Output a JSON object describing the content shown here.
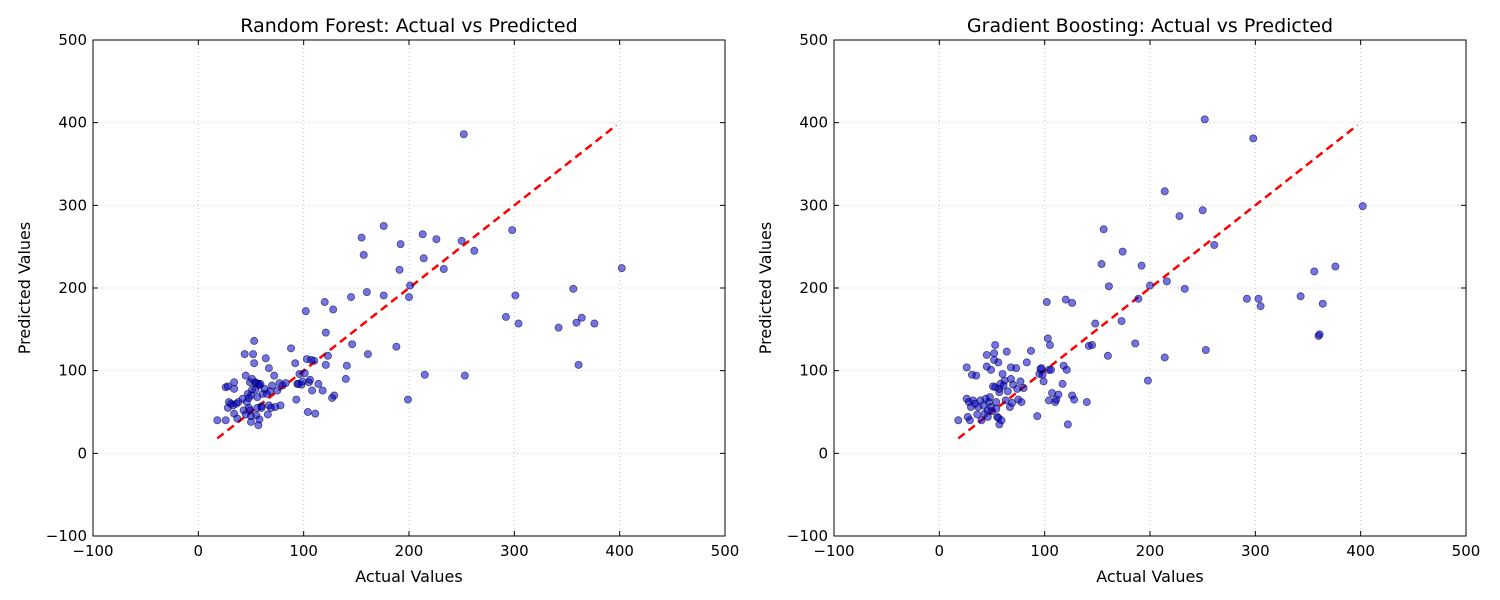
{
  "chart_data": [
    {
      "type": "scatter",
      "title": "Random Forest: Actual vs Predicted",
      "xlabel": "Actual Values",
      "ylabel": "Predicted Values",
      "xlim": [
        -100,
        500
      ],
      "ylim": [
        -100,
        500
      ],
      "xticks": [
        -100,
        0,
        100,
        200,
        300,
        400,
        500
      ],
      "yticks": [
        -100,
        0,
        100,
        200,
        300,
        400,
        500
      ],
      "grid": true,
      "reference_line": {
        "x": [
          18,
          397
        ],
        "y": [
          18,
          397
        ],
        "color": "#ff0000",
        "style": "dashed"
      },
      "point_color": "#0000cc",
      "points": [
        [
          18,
          40
        ],
        [
          26,
          40
        ],
        [
          26,
          80
        ],
        [
          28,
          55
        ],
        [
          28,
          81
        ],
        [
          29,
          62
        ],
        [
          31,
          60
        ],
        [
          33,
          58
        ],
        [
          34,
          78
        ],
        [
          34,
          86
        ],
        [
          34,
          48
        ],
        [
          36,
          60
        ],
        [
          37,
          42
        ],
        [
          38,
          62
        ],
        [
          42,
          66
        ],
        [
          43,
          52
        ],
        [
          44,
          120
        ],
        [
          45,
          94
        ],
        [
          45,
          47
        ],
        [
          46,
          62
        ],
        [
          47,
          72
        ],
        [
          48,
          55
        ],
        [
          48,
          67
        ],
        [
          49,
          52
        ],
        [
          49,
          86
        ],
        [
          50,
          45
        ],
        [
          50,
          38
        ],
        [
          50,
          70
        ],
        [
          51,
          90
        ],
        [
          51,
          77
        ],
        [
          52,
          120
        ],
        [
          53,
          136
        ],
        [
          53,
          109
        ],
        [
          54,
          86
        ],
        [
          54,
          77
        ],
        [
          55,
          85
        ],
        [
          55,
          46
        ],
        [
          56,
          68
        ],
        [
          56,
          55
        ],
        [
          57,
          84
        ],
        [
          57,
          34
        ],
        [
          58,
          82
        ],
        [
          58,
          41
        ],
        [
          59,
          84
        ],
        [
          60,
          57
        ],
        [
          60,
          55
        ],
        [
          61,
          72
        ],
        [
          63,
          78
        ],
        [
          64,
          115
        ],
        [
          65,
          72
        ],
        [
          66,
          47
        ],
        [
          67,
          103
        ],
        [
          67,
          58
        ],
        [
          68,
          75
        ],
        [
          69,
          55
        ],
        [
          70,
          82
        ],
        [
          72,
          94
        ],
        [
          73,
          56
        ],
        [
          75,
          76
        ],
        [
          77,
          85
        ],
        [
          78,
          58
        ],
        [
          80,
          82
        ],
        [
          83,
          85
        ],
        [
          88,
          127
        ],
        [
          92,
          109
        ],
        [
          93,
          65
        ],
        [
          94,
          84
        ],
        [
          95,
          84
        ],
        [
          96,
          96
        ],
        [
          98,
          83
        ],
        [
          99,
          87
        ],
        [
          101,
          97
        ],
        [
          102,
          172
        ],
        [
          103,
          114
        ],
        [
          104,
          50
        ],
        [
          105,
          86
        ],
        [
          106,
          89
        ],
        [
          107,
          113
        ],
        [
          108,
          76
        ],
        [
          110,
          112
        ],
        [
          111,
          48
        ],
        [
          114,
          84
        ],
        [
          118,
          76
        ],
        [
          120,
          183
        ],
        [
          121,
          146
        ],
        [
          121,
          107
        ],
        [
          123,
          118
        ],
        [
          127,
          67
        ],
        [
          128,
          174
        ],
        [
          129,
          70
        ],
        [
          140,
          90
        ],
        [
          141,
          106
        ],
        [
          145,
          189
        ],
        [
          146,
          132
        ],
        [
          155,
          261
        ],
        [
          157,
          240
        ],
        [
          160,
          195
        ],
        [
          161,
          120
        ],
        [
          176,
          191
        ],
        [
          176,
          275
        ],
        [
          188,
          129
        ],
        [
          191,
          222
        ],
        [
          192,
          253
        ],
        [
          199,
          65
        ],
        [
          200,
          189
        ],
        [
          201,
          203
        ],
        [
          213,
          265
        ],
        [
          214,
          236
        ],
        [
          215,
          95
        ],
        [
          226,
          259
        ],
        [
          233,
          223
        ],
        [
          250,
          257
        ],
        [
          252,
          386
        ],
        [
          253,
          94
        ],
        [
          262,
          245
        ],
        [
          292,
          165
        ],
        [
          298,
          270
        ],
        [
          301,
          191
        ],
        [
          304,
          157
        ],
        [
          342,
          152
        ],
        [
          356,
          199
        ],
        [
          359,
          158
        ],
        [
          361,
          107
        ],
        [
          364,
          164
        ],
        [
          376,
          157
        ],
        [
          402,
          224
        ]
      ]
    },
    {
      "type": "scatter",
      "title": "Gradient Boosting: Actual vs Predicted",
      "xlabel": "Actual Values",
      "ylabel": "Predicted Values",
      "xlim": [
        -100,
        500
      ],
      "ylim": [
        -100,
        500
      ],
      "xticks": [
        -100,
        0,
        100,
        200,
        300,
        400,
        500
      ],
      "yticks": [
        -100,
        0,
        100,
        200,
        300,
        400,
        500
      ],
      "grid": true,
      "reference_line": {
        "x": [
          18,
          397
        ],
        "y": [
          18,
          397
        ],
        "color": "#ff0000",
        "style": "dashed"
      },
      "point_color": "#0000cc",
      "points": [
        [
          18,
          40
        ],
        [
          26,
          104
        ],
        [
          26,
          66
        ],
        [
          27,
          44
        ],
        [
          28,
          62
        ],
        [
          29,
          40
        ],
        [
          30,
          56
        ],
        [
          31,
          95
        ],
        [
          32,
          64
        ],
        [
          34,
          60
        ],
        [
          35,
          94
        ],
        [
          36,
          47
        ],
        [
          37,
          56
        ],
        [
          39,
          64
        ],
        [
          40,
          40
        ],
        [
          42,
          58
        ],
        [
          43,
          48
        ],
        [
          44,
          66
        ],
        [
          45,
          119
        ],
        [
          45,
          105
        ],
        [
          46,
          52
        ],
        [
          46,
          44
        ],
        [
          47,
          62
        ],
        [
          48,
          68
        ],
        [
          49,
          56
        ],
        [
          49,
          101
        ],
        [
          50,
          51
        ],
        [
          51,
          81
        ],
        [
          52,
          121
        ],
        [
          52,
          113
        ],
        [
          53,
          131
        ],
        [
          53,
          80
        ],
        [
          54,
          54
        ],
        [
          54,
          62
        ],
        [
          55,
          44
        ],
        [
          56,
          43
        ],
        [
          56,
          110
        ],
        [
          57,
          35
        ],
        [
          57,
          74
        ],
        [
          57,
          78
        ],
        [
          58,
          84
        ],
        [
          59,
          40
        ],
        [
          60,
          96
        ],
        [
          61,
          82
        ],
        [
          62,
          88
        ],
        [
          63,
          64
        ],
        [
          64,
          123
        ],
        [
          65,
          75
        ],
        [
          67,
          56
        ],
        [
          68,
          90
        ],
        [
          68,
          104
        ],
        [
          69,
          61
        ],
        [
          70,
          83
        ],
        [
          73,
          103
        ],
        [
          74,
          78
        ],
        [
          75,
          65
        ],
        [
          77,
          87
        ],
        [
          78,
          62
        ],
        [
          80,
          79
        ],
        [
          83,
          110
        ],
        [
          87,
          124
        ],
        [
          93,
          45
        ],
        [
          95,
          96
        ],
        [
          96,
          102
        ],
        [
          97,
          103
        ],
        [
          98,
          95
        ],
        [
          99,
          87
        ],
        [
          102,
          183
        ],
        [
          103,
          139
        ],
        [
          104,
          64
        ],
        [
          104,
          101
        ],
        [
          105,
          131
        ],
        [
          106,
          101
        ],
        [
          107,
          73
        ],
        [
          110,
          62
        ],
        [
          111,
          65
        ],
        [
          113,
          71
        ],
        [
          117,
          84
        ],
        [
          118,
          106
        ],
        [
          120,
          186
        ],
        [
          121,
          101
        ],
        [
          122,
          35
        ],
        [
          126,
          70
        ],
        [
          126,
          182
        ],
        [
          128,
          65
        ],
        [
          140,
          62
        ],
        [
          142,
          130
        ],
        [
          145,
          131
        ],
        [
          148,
          157
        ],
        [
          154,
          229
        ],
        [
          156,
          271
        ],
        [
          160,
          118
        ],
        [
          161,
          202
        ],
        [
          173,
          160
        ],
        [
          174,
          244
        ],
        [
          186,
          133
        ],
        [
          189,
          187
        ],
        [
          192,
          227
        ],
        [
          198,
          88
        ],
        [
          200,
          203
        ],
        [
          214,
          116
        ],
        [
          214,
          317
        ],
        [
          216,
          208
        ],
        [
          228,
          287
        ],
        [
          233,
          199
        ],
        [
          250,
          294
        ],
        [
          252,
          404
        ],
        [
          253,
          125
        ],
        [
          261,
          252
        ],
        [
          292,
          187
        ],
        [
          298,
          381
        ],
        [
          303,
          187
        ],
        [
          305,
          178
        ],
        [
          343,
          190
        ],
        [
          356,
          220
        ],
        [
          360,
          142
        ],
        [
          361,
          144
        ],
        [
          364,
          181
        ],
        [
          376,
          226
        ],
        [
          402,
          299
        ]
      ]
    }
  ]
}
